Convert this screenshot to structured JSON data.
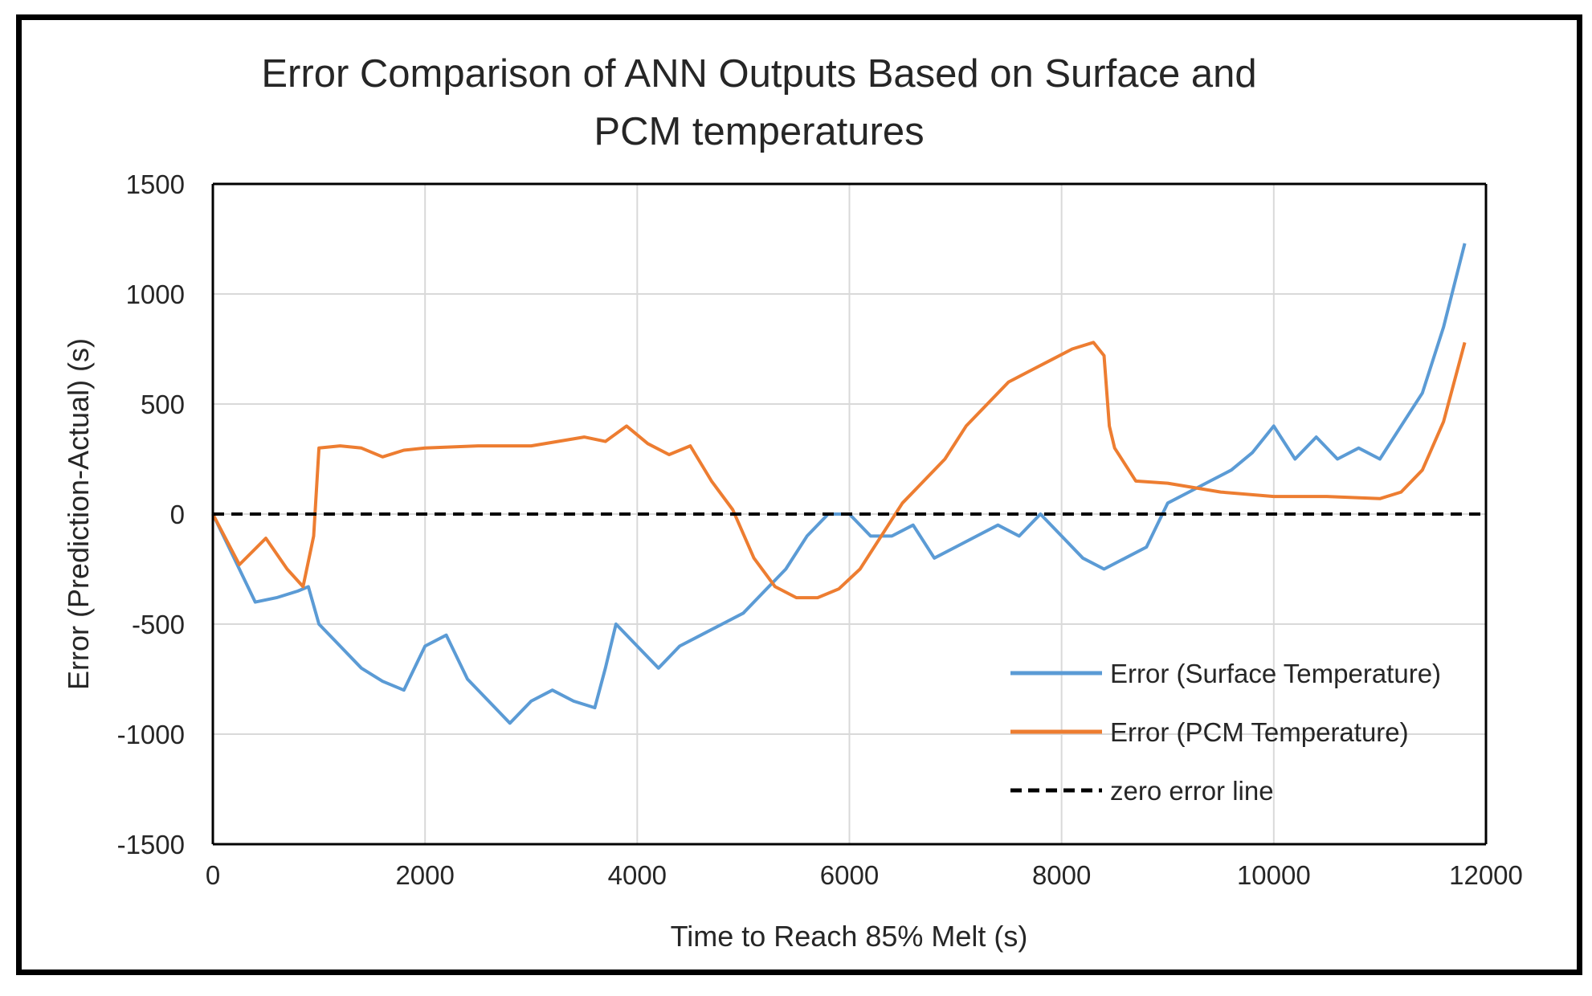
{
  "chart_data": {
    "type": "line",
    "title": [
      "Error Comparison of ANN Outputs Based on Surface and",
      "PCM temperatures"
    ],
    "xlabel": "Time to Reach 85% Melt (s)",
    "ylabel": "Error (Prediction-Actual) (s)",
    "xlim": [
      0,
      12000
    ],
    "ylim": [
      -1500,
      1500
    ],
    "xticks": [
      0,
      2000,
      4000,
      6000,
      8000,
      10000,
      12000
    ],
    "yticks": [
      -1500,
      -1000,
      -500,
      0,
      500,
      1000,
      1500
    ],
    "xtick_labels": [
      "0",
      "2000",
      "4000",
      "6000",
      "8000",
      "10000",
      "12000"
    ],
    "ytick_labels": [
      "-1500",
      "-1000",
      "-500",
      "0",
      "500",
      "1000",
      "1500"
    ],
    "grid": true,
    "legend_position": "bottom-right",
    "series": [
      {
        "name": "Error (Surface Temperature)",
        "color": "#5B9BD5",
        "style": "solid",
        "x": [
          0,
          200,
          400,
          600,
          800,
          900,
          1000,
          1200,
          1400,
          1600,
          1800,
          2000,
          2200,
          2400,
          2600,
          2800,
          3000,
          3200,
          3400,
          3600,
          3700,
          3800,
          4000,
          4200,
          4400,
          4600,
          4800,
          5000,
          5200,
          5400,
          5600,
          5800,
          6000,
          6200,
          6400,
          6600,
          6800,
          7000,
          7200,
          7400,
          7600,
          7800,
          8000,
          8200,
          8400,
          8600,
          8800,
          9000,
          9200,
          9400,
          9600,
          9800,
          10000,
          10200,
          10400,
          10600,
          10800,
          11000,
          11200,
          11400,
          11600,
          11800
        ],
        "y": [
          0,
          -200,
          -400,
          -380,
          -350,
          -330,
          -500,
          -600,
          -700,
          -760,
          -800,
          -600,
          -550,
          -750,
          -850,
          -950,
          -850,
          -800,
          -850,
          -880,
          -700,
          -500,
          -600,
          -700,
          -600,
          -550,
          -500,
          -450,
          -350,
          -250,
          -100,
          0,
          0,
          -100,
          -100,
          -50,
          -200,
          -150,
          -100,
          -50,
          -100,
          0,
          -100,
          -200,
          -250,
          -200,
          -150,
          50,
          100,
          150,
          200,
          280,
          400,
          250,
          350,
          250,
          300,
          250,
          400,
          550,
          850,
          1230
        ]
      },
      {
        "name": "Error (PCM Temperature)",
        "color": "#ED7D31",
        "style": "solid",
        "x": [
          0,
          250,
          500,
          700,
          850,
          950,
          1000,
          1200,
          1400,
          1600,
          1800,
          2000,
          2500,
          3000,
          3500,
          3700,
          3900,
          4100,
          4300,
          4500,
          4700,
          4900,
          5100,
          5300,
          5500,
          5700,
          5900,
          6100,
          6300,
          6500,
          6700,
          6900,
          7100,
          7300,
          7500,
          7700,
          7900,
          8100,
          8300,
          8400,
          8450,
          8500,
          8700,
          9000,
          9500,
          10000,
          10500,
          11000,
          11200,
          11400,
          11600,
          11800
        ],
        "y": [
          0,
          -230,
          -110,
          -250,
          -330,
          -100,
          300,
          310,
          300,
          260,
          290,
          300,
          310,
          310,
          350,
          330,
          400,
          320,
          270,
          310,
          150,
          20,
          -200,
          -330,
          -380,
          -380,
          -340,
          -250,
          -100,
          50,
          150,
          250,
          400,
          500,
          600,
          650,
          700,
          750,
          780,
          720,
          400,
          300,
          150,
          140,
          100,
          80,
          80,
          70,
          100,
          200,
          420,
          780
        ]
      },
      {
        "name": "zero error line",
        "color": "#000000",
        "style": "dashed",
        "x": [
          0,
          12000
        ],
        "y": [
          0,
          0
        ]
      }
    ]
  }
}
